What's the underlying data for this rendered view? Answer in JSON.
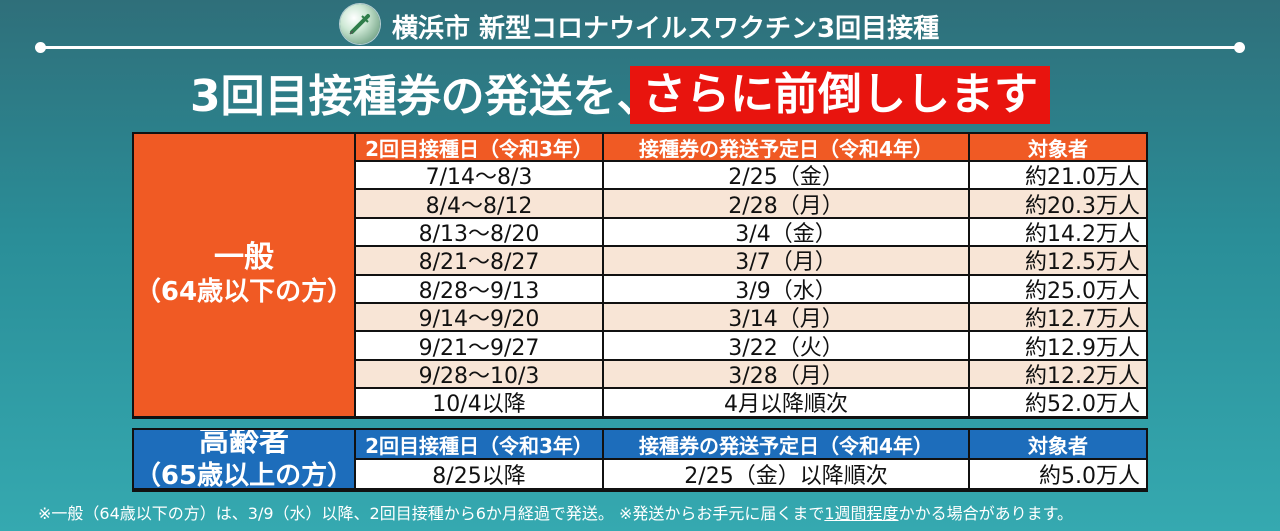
{
  "header": {
    "title": "横浜市 新型コロナウイルスワクチン3回目接種",
    "logo_icon": "vaccine-syringe-icon"
  },
  "headline": {
    "prefix": "3回目接種券の発送を、",
    "highlight": "さらに前倒しします"
  },
  "colors": {
    "general_header": "#f05a24",
    "senior_header": "#1d6dbb",
    "highlight": "#e8140e",
    "stripe": "#f8e5d6"
  },
  "general": {
    "group_line1": "一般",
    "group_line2": "（64歳以下の方）",
    "columns": [
      "2回目接種日（令和3年）",
      "接種券の発送予定日（令和4年）",
      "対象者"
    ],
    "rows": [
      [
        "7/14～8/3",
        "2/25（金）",
        "約21.0万人"
      ],
      [
        "8/4～8/12",
        "2/28（月）",
        "約20.3万人"
      ],
      [
        "8/13～8/20",
        "3/4（金）",
        "約14.2万人"
      ],
      [
        "8/21～8/27",
        "3/7（月）",
        "約12.5万人"
      ],
      [
        "8/28～9/13",
        "3/9（水）",
        "約25.0万人"
      ],
      [
        "9/14～9/20",
        "3/14（月）",
        "約12.7万人"
      ],
      [
        "9/21～9/27",
        "3/22（火）",
        "約12.9万人"
      ],
      [
        "9/28～10/3",
        "3/28（月）",
        "約12.2万人"
      ],
      [
        "10/4以降",
        "4月以降順次",
        "約52.0万人"
      ]
    ]
  },
  "senior": {
    "group_line1": "高齢者",
    "group_line2": "（65歳以上の方）",
    "columns": [
      "2回目接種日（令和3年）",
      "接種券の発送予定日（令和4年）",
      "対象者"
    ],
    "rows": [
      [
        "8/25以降",
        "2/25（金）以降順次",
        "約5.0万人"
      ]
    ]
  },
  "footnote": {
    "part1": "※一般（64歳以下の方）は、3/9（水）以降、2回目接種から6か月経過で発送。 ※発送からお手元に届くまで",
    "underlined": "1週間程度",
    "part2": "かかる場合があります。"
  }
}
